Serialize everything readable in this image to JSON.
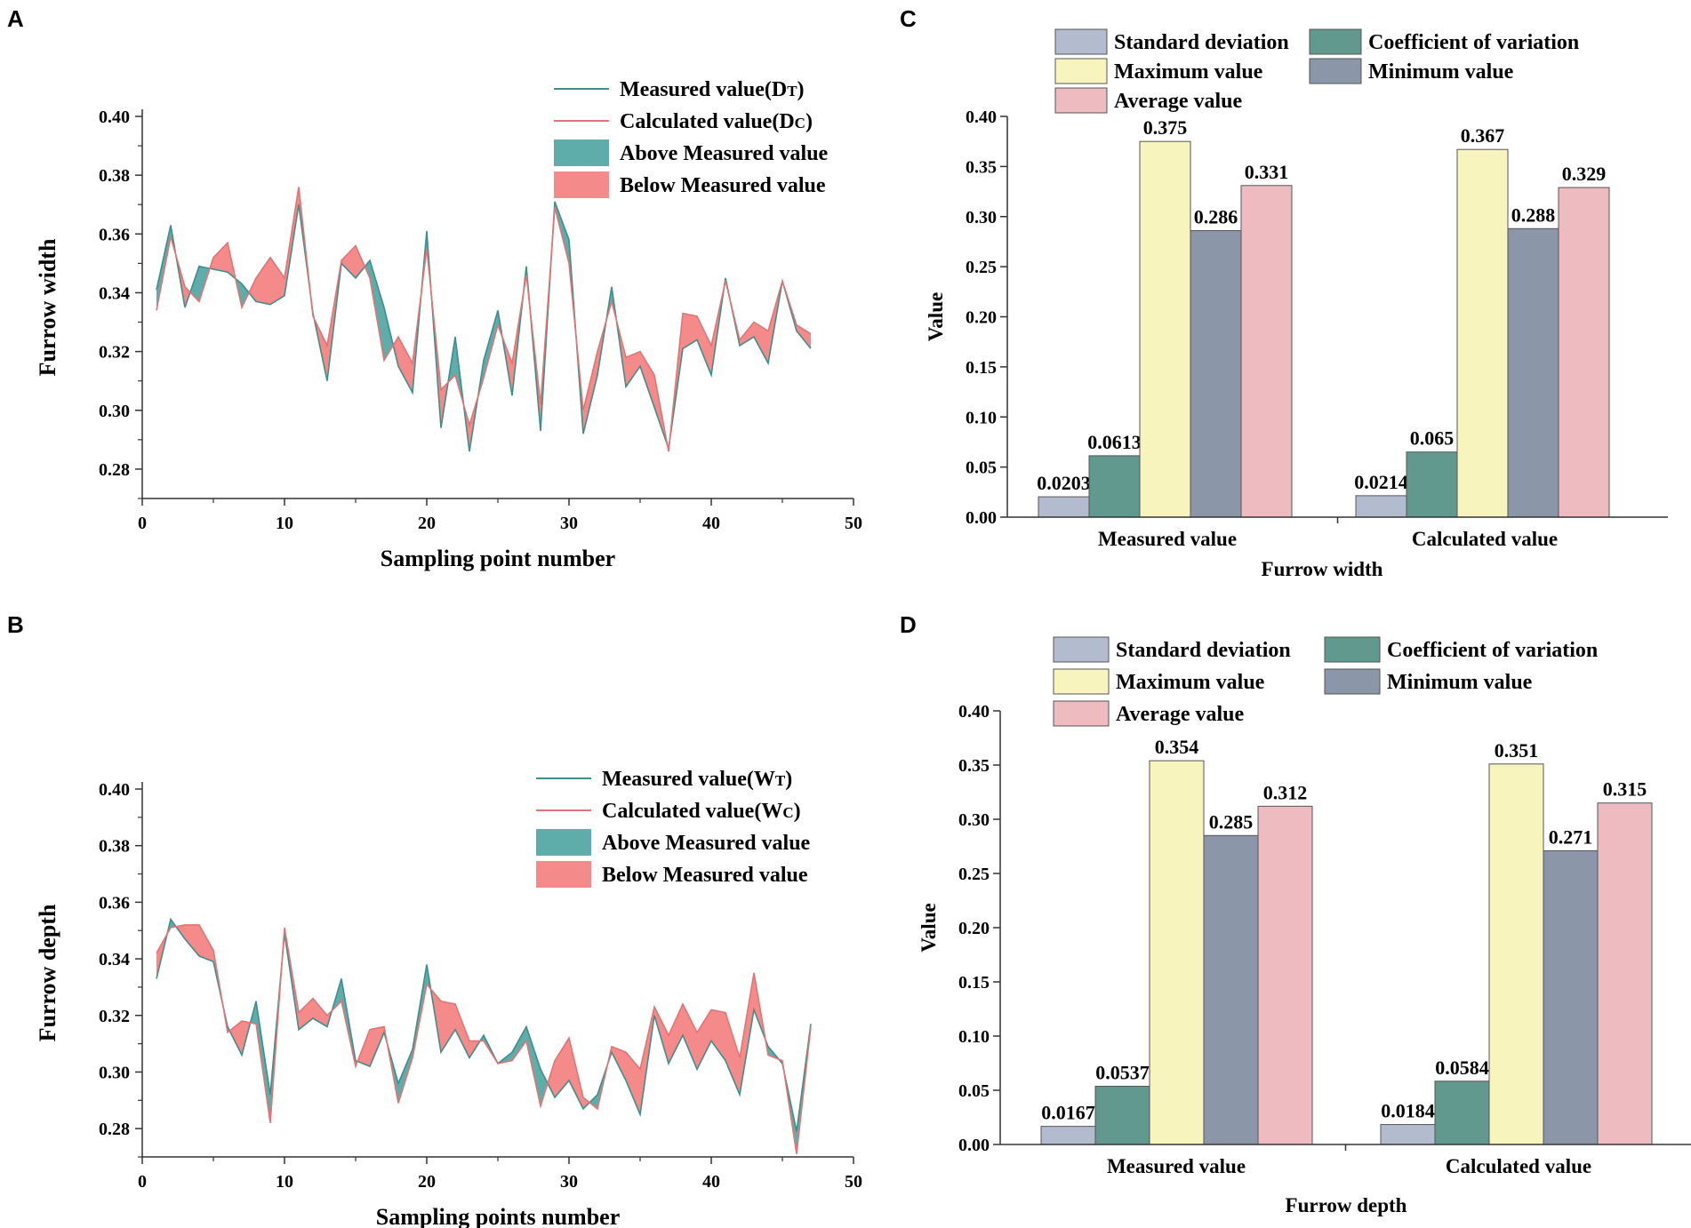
{
  "colors": {
    "measured_line": "#3e8f8c",
    "calculated_line": "#e57373",
    "above_fill": "#5eadab",
    "below_fill": "#f48a8a",
    "std": "#b3bccf",
    "cv": "#62998f",
    "max": "#f7f4be",
    "min": "#8b96a9",
    "avg": "#eebcc0"
  },
  "chart_data": [
    {
      "panel": "A",
      "type": "line",
      "xlabel": "Sampling point number",
      "ylabel": "Furrow width",
      "xlim": [
        0,
        50
      ],
      "ylim": [
        0.27,
        0.4
      ],
      "xticks": [
        "0",
        "10",
        "20",
        "30",
        "40",
        "50"
      ],
      "yticks": [
        "0.28",
        "0.30",
        "0.32",
        "0.34",
        "0.36",
        "0.38",
        "0.40"
      ],
      "legend": [
        {
          "main": "Measured value(D",
          "sub": "T",
          "close": ")"
        },
        {
          "main": "Calculated value(D",
          "sub": "C",
          "close": ")"
        },
        {
          "main": "Above Measured value",
          "sub": "",
          "close": ""
        },
        {
          "main": "Below Measured value",
          "sub": "",
          "close": ""
        }
      ],
      "x": [
        1,
        2,
        3,
        4,
        5,
        6,
        7,
        8,
        9,
        10,
        11,
        12,
        13,
        14,
        15,
        16,
        17,
        18,
        19,
        20,
        21,
        22,
        23,
        24,
        25,
        26,
        27,
        28,
        29,
        30,
        31,
        32,
        33,
        34,
        35,
        36,
        37,
        38,
        39,
        40,
        41,
        42,
        43,
        44,
        45,
        46,
        47
      ],
      "series": [
        {
          "name": "Measured value",
          "values": [
            0.341,
            0.363,
            0.335,
            0.349,
            0.348,
            0.347,
            0.343,
            0.337,
            0.336,
            0.339,
            0.37,
            0.333,
            0.31,
            0.35,
            0.345,
            0.351,
            0.335,
            0.315,
            0.306,
            0.361,
            0.294,
            0.325,
            0.286,
            0.317,
            0.334,
            0.305,
            0.349,
            0.293,
            0.371,
            0.358,
            0.292,
            0.312,
            0.342,
            0.308,
            0.315,
            0.301,
            0.287,
            0.321,
            0.324,
            0.312,
            0.345,
            0.322,
            0.325,
            0.316,
            0.344,
            0.327,
            0.321
          ]
        },
        {
          "name": "Calculated value",
          "values": [
            0.334,
            0.359,
            0.342,
            0.337,
            0.352,
            0.357,
            0.335,
            0.345,
            0.352,
            0.345,
            0.376,
            0.332,
            0.322,
            0.351,
            0.356,
            0.345,
            0.317,
            0.325,
            0.316,
            0.355,
            0.307,
            0.312,
            0.295,
            0.311,
            0.329,
            0.316,
            0.346,
            0.302,
            0.369,
            0.35,
            0.3,
            0.32,
            0.337,
            0.318,
            0.32,
            0.312,
            0.286,
            0.333,
            0.332,
            0.322,
            0.344,
            0.324,
            0.33,
            0.327,
            0.344,
            0.329,
            0.326
          ]
        }
      ]
    },
    {
      "panel": "B",
      "type": "line",
      "xlabel": "Sampling points number",
      "ylabel": "Furrow depth",
      "xlim": [
        0,
        50
      ],
      "ylim": [
        0.27,
        0.4
      ],
      "xticks": [
        "0",
        "10",
        "20",
        "30",
        "40",
        "50"
      ],
      "yticks": [
        "0.28",
        "0.30",
        "0.32",
        "0.34",
        "0.36",
        "0.38",
        "0.40"
      ],
      "legend": [
        {
          "main": "Measured value(W",
          "sub": "T",
          "close": ")"
        },
        {
          "main": "Calculated value(W",
          "sub": "C",
          "close": ")"
        },
        {
          "main": "Above Measured value",
          "sub": "",
          "close": ""
        },
        {
          "main": "Below Measured value",
          "sub": "",
          "close": ""
        }
      ],
      "x": [
        1,
        2,
        3,
        4,
        5,
        6,
        7,
        8,
        9,
        10,
        11,
        12,
        13,
        14,
        15,
        16,
        17,
        18,
        19,
        20,
        21,
        22,
        23,
        24,
        25,
        26,
        27,
        28,
        29,
        30,
        31,
        32,
        33,
        34,
        35,
        36,
        37,
        38,
        39,
        40,
        41,
        42,
        43,
        44,
        45,
        46,
        47
      ],
      "series": [
        {
          "name": "Measured value",
          "values": [
            0.333,
            0.354,
            0.347,
            0.341,
            0.339,
            0.316,
            0.306,
            0.325,
            0.292,
            0.349,
            0.315,
            0.319,
            0.316,
            0.333,
            0.304,
            0.302,
            0.314,
            0.296,
            0.308,
            0.338,
            0.307,
            0.315,
            0.305,
            0.313,
            0.303,
            0.307,
            0.316,
            0.301,
            0.291,
            0.297,
            0.287,
            0.292,
            0.307,
            0.297,
            0.285,
            0.32,
            0.303,
            0.313,
            0.301,
            0.311,
            0.304,
            0.292,
            0.322,
            0.309,
            0.303,
            0.279,
            0.317
          ]
        },
        {
          "name": "Calculated value",
          "values": [
            0.342,
            0.351,
            0.352,
            0.352,
            0.343,
            0.314,
            0.318,
            0.317,
            0.282,
            0.351,
            0.321,
            0.326,
            0.32,
            0.325,
            0.302,
            0.315,
            0.316,
            0.289,
            0.305,
            0.331,
            0.325,
            0.324,
            0.311,
            0.311,
            0.303,
            0.304,
            0.311,
            0.288,
            0.304,
            0.312,
            0.291,
            0.287,
            0.309,
            0.307,
            0.301,
            0.323,
            0.313,
            0.324,
            0.314,
            0.322,
            0.321,
            0.305,
            0.335,
            0.306,
            0.304,
            0.271,
            0.316
          ]
        }
      ]
    },
    {
      "panel": "C",
      "type": "bar",
      "xlabel": "Furrow width",
      "ylabel": "Value",
      "ylim": [
        0,
        0.4
      ],
      "yticks": [
        "0.00",
        "0.05",
        "0.10",
        "0.15",
        "0.20",
        "0.25",
        "0.30",
        "0.35",
        "0.40"
      ],
      "categories": [
        "Measured value",
        "Calculated value"
      ],
      "series": [
        {
          "name": "Standard deviation",
          "values": [
            0.0203,
            0.0214
          ],
          "labels": [
            "0.0203",
            "0.0214"
          ]
        },
        {
          "name": "Coefficient of variation",
          "values": [
            0.0613,
            0.065
          ],
          "labels": [
            "0.0613",
            "0.065"
          ]
        },
        {
          "name": "Maximum value",
          "values": [
            0.375,
            0.367
          ],
          "labels": [
            "0.375",
            "0.367"
          ]
        },
        {
          "name": "Minimum value",
          "values": [
            0.286,
            0.288
          ],
          "labels": [
            "0.286",
            "0.288"
          ]
        },
        {
          "name": "Average value",
          "values": [
            0.331,
            0.329
          ],
          "labels": [
            "0.331",
            "0.329"
          ]
        }
      ]
    },
    {
      "panel": "D",
      "type": "bar",
      "xlabel": "Furrow depth",
      "ylabel": "Value",
      "ylim": [
        0,
        0.4
      ],
      "yticks": [
        "0.00",
        "0.05",
        "0.10",
        "0.15",
        "0.20",
        "0.25",
        "0.30",
        "0.35",
        "0.40"
      ],
      "categories": [
        "Measured value",
        "Calculated value"
      ],
      "series": [
        {
          "name": "Standard deviation",
          "values": [
            0.0167,
            0.0184
          ],
          "labels": [
            "0.0167",
            "0.0184"
          ]
        },
        {
          "name": "Coefficient of variation",
          "values": [
            0.0537,
            0.0584
          ],
          "labels": [
            "0.0537",
            "0.0584"
          ]
        },
        {
          "name": "Maximum value",
          "values": [
            0.354,
            0.351
          ],
          "labels": [
            "0.354",
            "0.351"
          ]
        },
        {
          "name": "Minimum value",
          "values": [
            0.285,
            0.271
          ],
          "labels": [
            "0.285",
            "0.271"
          ]
        },
        {
          "name": "Average value",
          "values": [
            0.312,
            0.315
          ],
          "labels": [
            "0.312",
            "0.315"
          ]
        }
      ]
    }
  ]
}
